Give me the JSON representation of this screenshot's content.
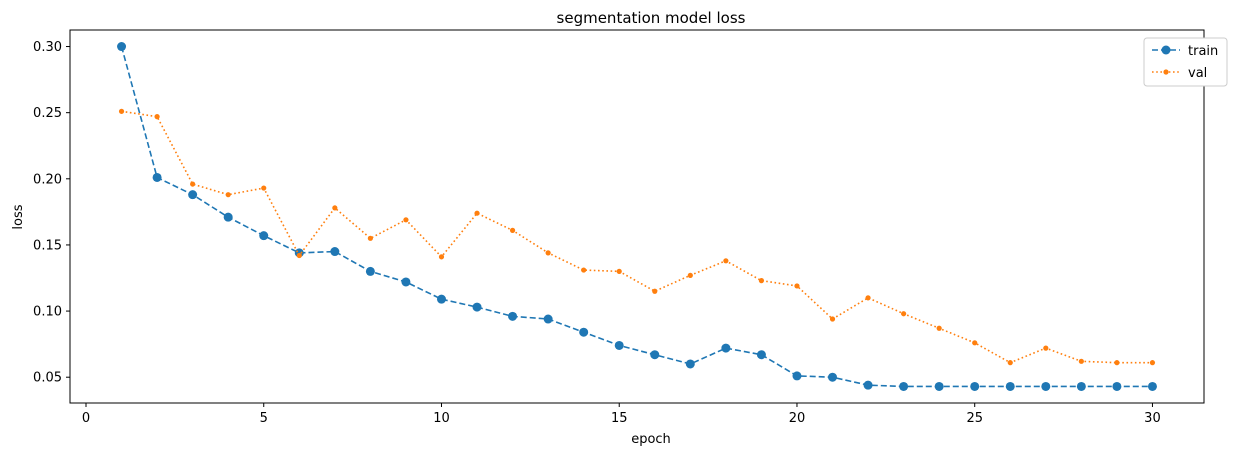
{
  "chart_data": {
    "type": "line",
    "title": "segmentation model loss",
    "xlabel": "epoch",
    "ylabel": "loss",
    "xlim": [
      -0.45,
      31.45
    ],
    "ylim": [
      0.0305,
      0.3125
    ],
    "xticks": [
      0,
      5,
      10,
      15,
      20,
      25,
      30
    ],
    "xtick_labels": [
      "0",
      "5",
      "10",
      "15",
      "20",
      "25",
      "30"
    ],
    "yticks": [
      0.05,
      0.1,
      0.15,
      0.2,
      0.25,
      0.3
    ],
    "ytick_labels": [
      "0.05",
      "0.10",
      "0.15",
      "0.20",
      "0.25",
      "0.30"
    ],
    "grid": false,
    "legend_position": "top-right",
    "x": [
      1,
      2,
      3,
      4,
      5,
      6,
      7,
      8,
      9,
      10,
      11,
      12,
      13,
      14,
      15,
      16,
      17,
      18,
      19,
      20,
      21,
      22,
      23,
      24,
      25,
      26,
      27,
      28,
      29,
      30
    ],
    "series": [
      {
        "name": "train",
        "color": "#1f77b4",
        "line_style": "dashed",
        "marker": "circle",
        "values": [
          0.3,
          0.201,
          0.188,
          0.171,
          0.157,
          0.144,
          0.145,
          0.13,
          0.122,
          0.109,
          0.103,
          0.096,
          0.094,
          0.084,
          0.074,
          0.067,
          0.06,
          0.072,
          0.067,
          0.051,
          0.05,
          0.044,
          0.043,
          0.043,
          0.043,
          0.043,
          0.043,
          0.043,
          0.043,
          0.043
        ]
      },
      {
        "name": "val",
        "color": "#ff7f0e",
        "line_style": "dotted",
        "marker": "point",
        "values": [
          0.251,
          0.247,
          0.196,
          0.188,
          0.193,
          0.142,
          0.178,
          0.155,
          0.169,
          0.141,
          0.174,
          0.161,
          0.144,
          0.131,
          0.13,
          0.115,
          0.127,
          0.138,
          0.123,
          0.119,
          0.094,
          0.11,
          0.098,
          0.087,
          0.076,
          0.061,
          0.072,
          0.062,
          0.061,
          0.061
        ]
      }
    ]
  }
}
